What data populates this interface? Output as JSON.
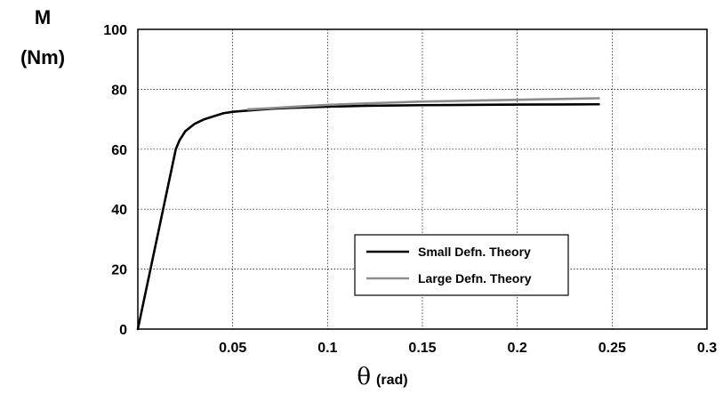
{
  "chart_data": {
    "type": "line",
    "ylabel": [
      "M",
      "(Nm)"
    ],
    "xlabel": {
      "symbol": "θ",
      "unit": "(rad)"
    },
    "xlim": [
      0,
      0.3
    ],
    "ylim": [
      0,
      100
    ],
    "x_ticks": [
      0.05,
      0.1,
      0.15,
      0.2,
      0.25,
      0.3
    ],
    "x_tick_labels": [
      "0.05",
      "0.1",
      "0.15",
      "0.2",
      "0.25",
      "0.3"
    ],
    "y_ticks": [
      0,
      20,
      40,
      60,
      80,
      100
    ],
    "y_tick_labels": [
      "0",
      "20",
      "40",
      "60",
      "80",
      "100"
    ],
    "grid": true,
    "legend_position": "lower-right",
    "series": [
      {
        "name": "Small Defn. Theory",
        "color": "#000000",
        "x": [
          0,
          0.02,
          0.022,
          0.025,
          0.03,
          0.035,
          0.04,
          0.045,
          0.05,
          0.06,
          0.07,
          0.08,
          0.1,
          0.12,
          0.15,
          0.2,
          0.243
        ],
        "y": [
          0,
          60,
          63,
          66,
          68.5,
          70,
          71,
          72,
          72.5,
          73,
          73.5,
          73.8,
          74.2,
          74.5,
          74.7,
          74.9,
          75
        ]
      },
      {
        "name": "Large Defn. Theory",
        "color": "#8c8c8c",
        "x": [
          0.058,
          0.07,
          0.08,
          0.1,
          0.12,
          0.15,
          0.2,
          0.243
        ],
        "y": [
          73.3,
          73.7,
          74.1,
          74.8,
          75.3,
          75.9,
          76.5,
          77
        ]
      }
    ]
  }
}
